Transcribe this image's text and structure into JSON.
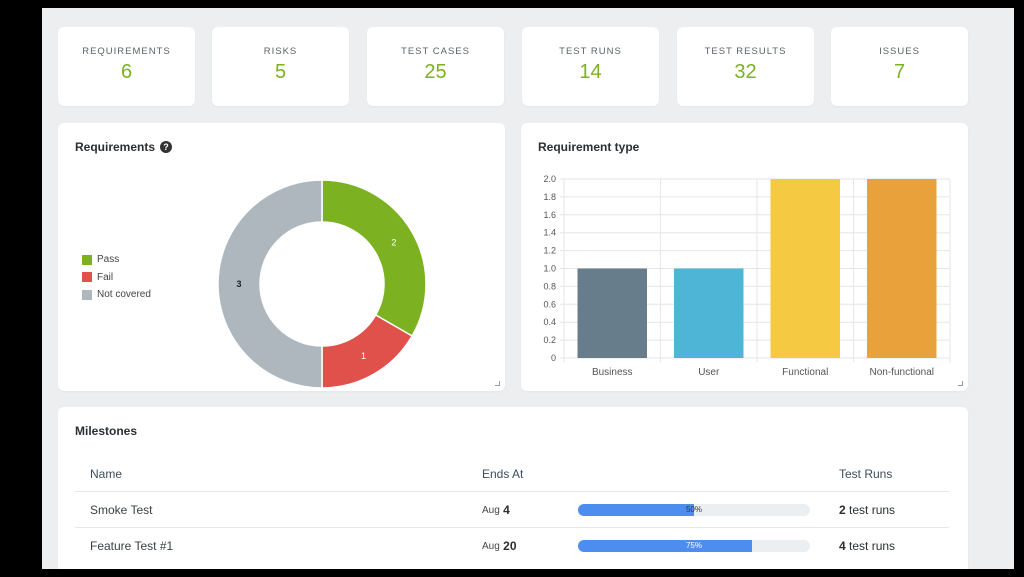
{
  "stats": [
    {
      "label": "REQUIREMENTS",
      "value": "6"
    },
    {
      "label": "RISKS",
      "value": "5"
    },
    {
      "label": "TEST CASES",
      "value": "25"
    },
    {
      "label": "TEST RUNS",
      "value": "14"
    },
    {
      "label": "TEST RESULTS",
      "value": "32"
    },
    {
      "label": "ISSUES",
      "value": "7"
    }
  ],
  "requirements": {
    "title": "Requirements",
    "help_glyph": "?",
    "legend": [
      "Pass",
      "Fail",
      "Not covered"
    ]
  },
  "requirement_type": {
    "title": "Requirement type"
  },
  "chart_data": [
    {
      "type": "pie",
      "categories": [
        "Pass",
        "Fail",
        "Not covered"
      ],
      "values": [
        2,
        1,
        3
      ],
      "labels": [
        "2",
        "1",
        "3"
      ],
      "colors": [
        "#7cb122",
        "#e0514c",
        "#aeb7bd"
      ],
      "legend": "left"
    },
    {
      "type": "bar",
      "categories": [
        "Business",
        "User",
        "Functional",
        "Non-functional"
      ],
      "values": [
        1,
        1,
        2,
        2
      ],
      "colors": [
        "#687d8b",
        "#4eb5d6",
        "#f5c942",
        "#e9a23b"
      ],
      "yticks": [
        "2.0",
        "1.8",
        "1.6",
        "1.4",
        "1.2",
        "1.0",
        "0.8",
        "0.6",
        "0.4",
        "0.2",
        "0"
      ],
      "ylim": [
        0,
        2
      ],
      "grid": true
    }
  ],
  "milestones": {
    "title": "Milestones",
    "headers": {
      "name": "Name",
      "ends_at": "Ends At",
      "test_runs": "Test Runs"
    },
    "rows": [
      {
        "name": "Smoke Test",
        "month": "Aug",
        "day": "4",
        "progress": 50,
        "progress_label": "50%",
        "runs_count": "2",
        "runs_label": "test runs"
      },
      {
        "name": "Feature Test #1",
        "month": "Aug",
        "day": "20",
        "progress": 75,
        "progress_label": "75%",
        "runs_count": "4",
        "runs_label": "test runs"
      }
    ]
  },
  "colors": {
    "accent_green": "#7cb122",
    "progress_blue": "#4c8def"
  }
}
